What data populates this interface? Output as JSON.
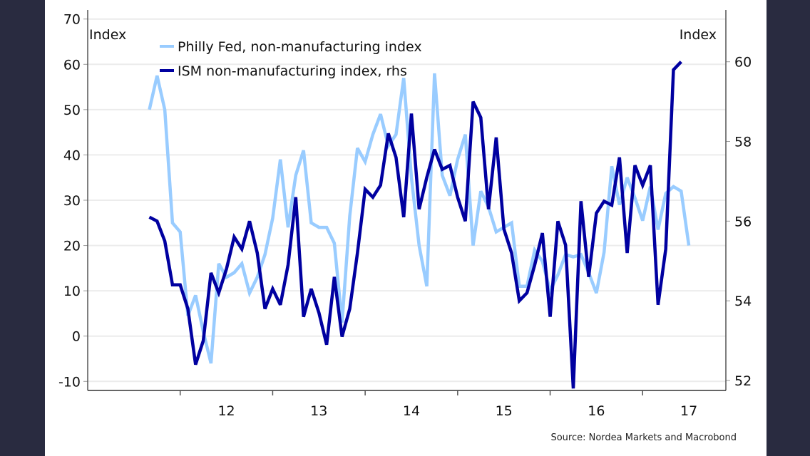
{
  "chart_data": {
    "type": "line",
    "title": "",
    "left_axis": {
      "label": "Index",
      "ylim": [
        -12,
        72
      ],
      "ticks": [
        -10,
        0,
        10,
        20,
        30,
        40,
        50,
        60,
        70
      ]
    },
    "right_axis": {
      "label": "Index",
      "ylim": [
        51.75,
        61.3
      ],
      "ticks": [
        52,
        54,
        56,
        58,
        60
      ]
    },
    "x_axis": {
      "tick_labels": [
        "12",
        "13",
        "14",
        "15",
        "16",
        "17"
      ],
      "range_years": [
        2011.0,
        2017.9
      ],
      "start": "2011-09",
      "frequency": "monthly"
    },
    "grid": true,
    "legend_position": "top-left",
    "series": [
      {
        "name": "Philly Fed, non-manufacturing index",
        "axis": "left",
        "color": "#99ccff",
        "values": [
          50,
          57.5,
          50,
          25,
          23,
          4.5,
          9,
          1,
          -6,
          16,
          13,
          14,
          16,
          9.5,
          13,
          18,
          26,
          39,
          24,
          35.5,
          41,
          25,
          24,
          24,
          20.5,
          3,
          26.5,
          41.5,
          38.5,
          44.5,
          49,
          42,
          44.5,
          57,
          35,
          20,
          11,
          58,
          35.5,
          31,
          39,
          44.5,
          20,
          32,
          28.5,
          23,
          24,
          25,
          11,
          11,
          19,
          16.5,
          10,
          13.5,
          18,
          17.5,
          18,
          14,
          9.5,
          18.5,
          37.5,
          29,
          35,
          30.5,
          25.5,
          33,
          23.5,
          31.5,
          33,
          32,
          20
        ]
      },
      {
        "name": "ISM non-manufacturing index, rhs",
        "axis": "right",
        "color": "#0000a0",
        "values": [
          56.1,
          56.0,
          55.5,
          54.4,
          54.4,
          53.8,
          52.4,
          53.0,
          54.7,
          54.2,
          54.8,
          55.6,
          55.3,
          56.0,
          55.2,
          53.8,
          54.3,
          53.9,
          54.9,
          56.6,
          53.6,
          54.3,
          53.7,
          52.9,
          54.6,
          53.1,
          53.8,
          55.2,
          56.8,
          56.6,
          56.9,
          58.2,
          57.6,
          56.1,
          58.7,
          56.3,
          57.1,
          57.8,
          57.3,
          57.4,
          56.6,
          56.0,
          59.0,
          58.6,
          56.3,
          58.1,
          55.8,
          55.2,
          54.0,
          54.2,
          54.9,
          55.7,
          53.6,
          56.0,
          55.4,
          51.8,
          56.5,
          54.6,
          56.2,
          56.5,
          56.4,
          57.6,
          55.2,
          57.4,
          56.9,
          57.4,
          53.9,
          55.3,
          59.8,
          60.0
        ]
      }
    ],
    "source": "Source: Nordea Markets and Macrobond"
  }
}
